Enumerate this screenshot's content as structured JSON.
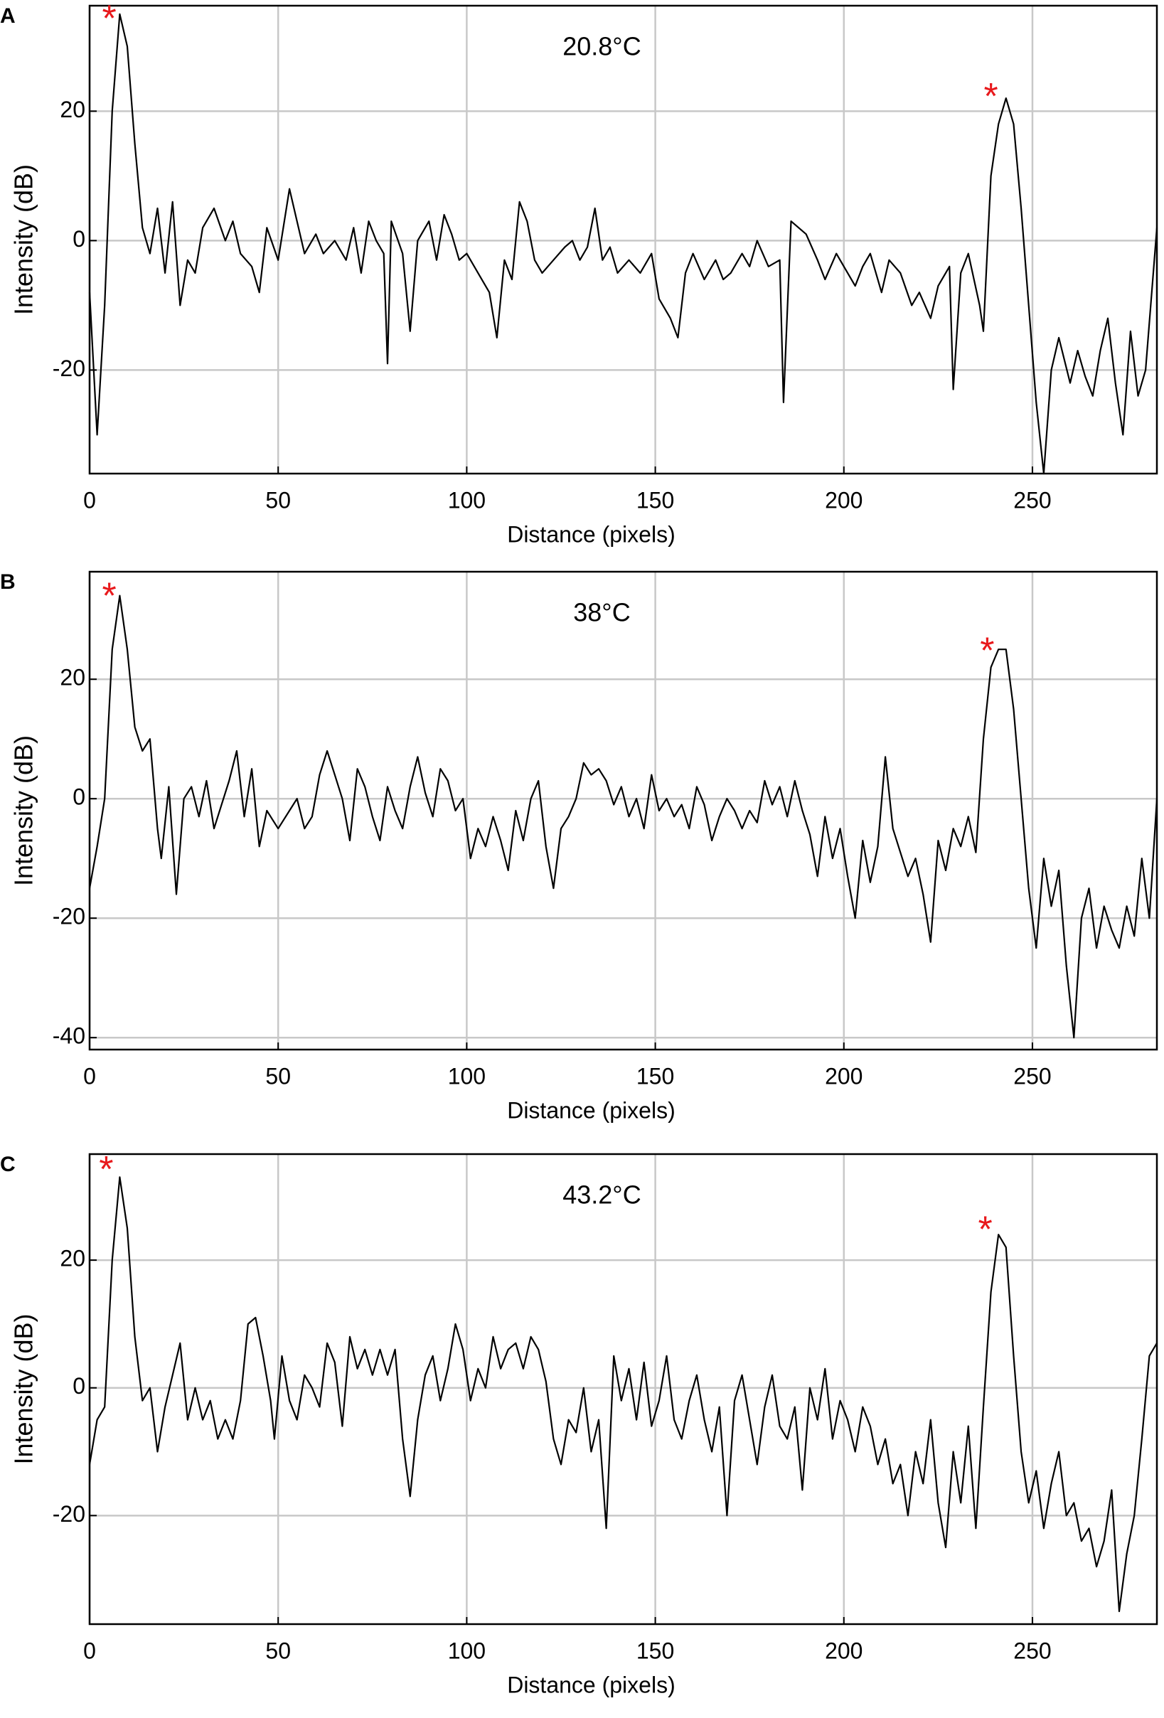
{
  "chart_data": [
    {
      "type": "line",
      "panel_label": "A",
      "annotation": "20.8°C",
      "x_label": "Distance (pixels)",
      "y_label": "Intensity (dB)",
      "color": "#000000",
      "marker_color": "#e8191c",
      "grid": true,
      "xlim": [
        0,
        283
      ],
      "xticks": [
        0,
        50,
        100,
        150,
        200,
        250
      ],
      "ylim": [
        -36,
        36.3
      ],
      "yticks": [
        -20,
        0,
        20
      ],
      "markers": [
        {
          "label": "*",
          "x": 5.2,
          "y": 35
        },
        {
          "label": "*",
          "x": 239,
          "y": 23
        }
      ],
      "x": [
        0,
        2,
        4,
        6,
        8,
        10,
        12,
        14,
        16,
        18,
        20,
        22,
        24,
        26,
        28,
        30,
        33,
        36,
        38,
        40,
        43,
        45,
        47,
        50,
        53,
        55,
        57,
        60,
        62,
        65,
        68,
        70,
        72,
        74,
        76,
        78,
        79,
        80,
        83,
        85,
        87,
        90,
        92,
        94,
        96,
        98,
        100,
        103,
        106,
        108,
        110,
        112,
        114,
        116,
        118,
        120,
        123,
        126,
        128,
        130,
        132,
        134,
        136,
        138,
        140,
        143,
        146,
        149,
        151,
        154,
        156,
        158,
        160,
        163,
        166,
        168,
        170,
        173,
        175,
        177,
        180,
        183,
        184,
        186,
        188,
        190,
        193,
        195,
        198,
        200,
        203,
        205,
        207,
        210,
        212,
        215,
        218,
        220,
        223,
        225,
        228,
        229,
        231,
        233,
        236,
        237,
        239,
        241,
        243,
        245,
        247,
        249,
        251,
        253,
        255,
        257,
        260,
        262,
        264,
        266,
        268,
        270,
        272,
        274,
        276,
        278,
        280,
        283
      ],
      "values": [
        -8,
        -30,
        -10,
        20,
        35,
        30,
        15,
        2,
        -2,
        5,
        -5,
        6,
        -10,
        -3,
        -5,
        2,
        5,
        0,
        3,
        -2,
        -4,
        -8,
        2,
        -3,
        8,
        3,
        -2,
        1,
        -2,
        0,
        -3,
        2,
        -5,
        3,
        0,
        -2,
        -19,
        3,
        -2,
        -14,
        0,
        3,
        -3,
        4,
        1,
        -3,
        -2,
        -5,
        -8,
        -15,
        -3,
        -6,
        6,
        3,
        -3,
        -5,
        -3,
        -1,
        0,
        -3,
        -1,
        5,
        -3,
        -1,
        -5,
        -3,
        -5,
        -2,
        -9,
        -12,
        -15,
        -5,
        -2,
        -6,
        -3,
        -6,
        -5,
        -2,
        -4,
        0,
        -4,
        -3,
        -25,
        3,
        2,
        1,
        -3,
        -6,
        -2,
        -4,
        -7,
        -4,
        -2,
        -8,
        -3,
        -5,
        -10,
        -8,
        -12,
        -7,
        -4,
        -23,
        -5,
        -2,
        -10,
        -14,
        10,
        18,
        22,
        18,
        5,
        -10,
        -25,
        -36,
        -20,
        -15,
        -22,
        -17,
        -21,
        -24,
        -17,
        -12,
        -22,
        -30,
        -14,
        -24,
        -20,
        2
      ]
    },
    {
      "type": "line",
      "panel_label": "B",
      "annotation": "38°C",
      "x_label": "Distance (pixels)",
      "y_label": "Intensity (dB)",
      "color": "#000000",
      "marker_color": "#e8191c",
      "grid": true,
      "xlim": [
        0,
        283
      ],
      "xticks": [
        0,
        50,
        100,
        150,
        200,
        250
      ],
      "ylim": [
        -42,
        38
      ],
      "yticks": [
        -40,
        -20,
        0,
        20
      ],
      "markers": [
        {
          "label": "*",
          "x": 5.2,
          "y": 34.7
        },
        {
          "label": "*",
          "x": 238,
          "y": 25.5
        }
      ],
      "x": [
        0,
        2,
        4,
        6,
        8,
        10,
        12,
        14,
        16,
        18,
        19,
        21,
        23,
        25,
        27,
        29,
        31,
        33,
        35,
        37,
        39,
        41,
        43,
        45,
        47,
        50,
        53,
        55,
        57,
        59,
        61,
        63,
        65,
        67,
        69,
        71,
        73,
        75,
        77,
        79,
        81,
        83,
        85,
        87,
        89,
        91,
        93,
        95,
        97,
        99,
        101,
        103,
        105,
        107,
        109,
        111,
        113,
        115,
        117,
        119,
        121,
        123,
        125,
        127,
        129,
        131,
        133,
        135,
        137,
        139,
        141,
        143,
        145,
        147,
        149,
        151,
        153,
        155,
        157,
        159,
        161,
        163,
        165,
        167,
        169,
        171,
        173,
        175,
        177,
        179,
        181,
        183,
        185,
        187,
        189,
        191,
        193,
        195,
        197,
        199,
        201,
        203,
        205,
        207,
        209,
        211,
        213,
        215,
        217,
        219,
        221,
        223,
        225,
        227,
        229,
        231,
        233,
        235,
        237,
        239,
        241,
        243,
        245,
        247,
        249,
        251,
        253,
        255,
        257,
        259,
        261,
        263,
        265,
        267,
        269,
        271,
        273,
        275,
        277,
        279,
        281,
        283
      ],
      "values": [
        -15,
        -8,
        0,
        25,
        34,
        25,
        12,
        8,
        10,
        -5,
        -10,
        2,
        -16,
        0,
        2,
        -3,
        3,
        -5,
        -1,
        3,
        8,
        -3,
        5,
        -8,
        -2,
        -5,
        -2,
        0,
        -5,
        -3,
        4,
        8,
        4,
        0,
        -7,
        5,
        2,
        -3,
        -7,
        2,
        -2,
        -5,
        2,
        7,
        1,
        -3,
        5,
        3,
        -2,
        0,
        -10,
        -5,
        -8,
        -3,
        -7,
        -12,
        -2,
        -7,
        0,
        3,
        -8,
        -15,
        -5,
        -3,
        0,
        6,
        4,
        5,
        3,
        -1,
        2,
        -3,
        0,
        -5,
        4,
        -2,
        0,
        -3,
        -1,
        -5,
        2,
        -1,
        -7,
        -3,
        0,
        -2,
        -5,
        -2,
        -4,
        3,
        -1,
        2,
        -3,
        3,
        -2,
        -6,
        -13,
        -3,
        -10,
        -5,
        -13,
        -20,
        -7,
        -14,
        -8,
        7,
        -5,
        -9,
        -13,
        -10,
        -16,
        -24,
        -7,
        -12,
        -5,
        -8,
        -3,
        -9,
        10,
        22,
        25,
        25,
        15,
        0,
        -15,
        -25,
        -10,
        -18,
        -12,
        -28,
        -40,
        -20,
        -15,
        -25,
        -18,
        -22,
        -25,
        -18,
        -23,
        -10,
        -20,
        0
      ]
    },
    {
      "type": "line",
      "panel_label": "C",
      "annotation": "43.2°C",
      "x_label": "Distance (pixels)",
      "y_label": "Intensity (dB)",
      "color": "#000000",
      "marker_color": "#e8191c",
      "grid": true,
      "xlim": [
        0,
        283
      ],
      "xticks": [
        0,
        50,
        100,
        150,
        200,
        250
      ],
      "ylim": [
        -37,
        36.6
      ],
      "yticks": [
        -20,
        0,
        20
      ],
      "markers": [
        {
          "label": "*",
          "x": 4.4,
          "y": 34.9
        },
        {
          "label": "*",
          "x": 237.5,
          "y": 25.5
        }
      ],
      "x": [
        0,
        2,
        4,
        6,
        8,
        10,
        12,
        14,
        16,
        18,
        20,
        22,
        24,
        26,
        28,
        30,
        32,
        34,
        36,
        38,
        40,
        42,
        44,
        46,
        48,
        49,
        51,
        53,
        55,
        57,
        59,
        61,
        63,
        65,
        67,
        69,
        71,
        73,
        75,
        77,
        79,
        81,
        83,
        85,
        87,
        89,
        91,
        93,
        95,
        97,
        99,
        101,
        103,
        105,
        107,
        109,
        111,
        113,
        115,
        117,
        119,
        121,
        123,
        125,
        127,
        129,
        131,
        133,
        135,
        137,
        139,
        141,
        143,
        145,
        147,
        149,
        151,
        153,
        155,
        157,
        159,
        161,
        163,
        165,
        167,
        169,
        171,
        173,
        175,
        177,
        179,
        181,
        183,
        185,
        187,
        189,
        191,
        193,
        195,
        197,
        199,
        201,
        203,
        205,
        207,
        209,
        211,
        213,
        215,
        217,
        219,
        221,
        223,
        225,
        227,
        229,
        231,
        233,
        235,
        237,
        239,
        241,
        243,
        245,
        247,
        249,
        251,
        253,
        255,
        257,
        259,
        261,
        263,
        265,
        267,
        269,
        271,
        273,
        275,
        277,
        279,
        281,
        283
      ],
      "values": [
        -12,
        -5,
        -3,
        20,
        33,
        25,
        8,
        -2,
        0,
        -10,
        -3,
        2,
        7,
        -5,
        0,
        -5,
        -2,
        -8,
        -5,
        -8,
        -2,
        10,
        11,
        5,
        -2,
        -8,
        5,
        -2,
        -5,
        2,
        0,
        -3,
        7,
        4,
        -6,
        8,
        3,
        6,
        2,
        6,
        2,
        6,
        -8,
        -17,
        -5,
        2,
        5,
        -2,
        3,
        10,
        6,
        -2,
        3,
        0,
        8,
        3,
        6,
        7,
        3,
        8,
        6,
        1,
        -8,
        -12,
        -5,
        -7,
        0,
        -10,
        -5,
        -22,
        5,
        -2,
        3,
        -5,
        4,
        -6,
        -2,
        5,
        -5,
        -8,
        -2,
        2,
        -5,
        -10,
        -3,
        -20,
        -2,
        2,
        -5,
        -12,
        -3,
        2,
        -6,
        -8,
        -3,
        -16,
        0,
        -5,
        3,
        -8,
        -2,
        -5,
        -10,
        -3,
        -6,
        -12,
        -8,
        -15,
        -12,
        -20,
        -10,
        -15,
        -5,
        -18,
        -25,
        -10,
        -18,
        -6,
        -22,
        -3,
        15,
        24,
        22,
        5,
        -10,
        -18,
        -13,
        -22,
        -15,
        -10,
        -20,
        -18,
        -24,
        -22,
        -28,
        -24,
        -16,
        -35,
        -26,
        -20,
        -8,
        5,
        7
      ]
    }
  ]
}
